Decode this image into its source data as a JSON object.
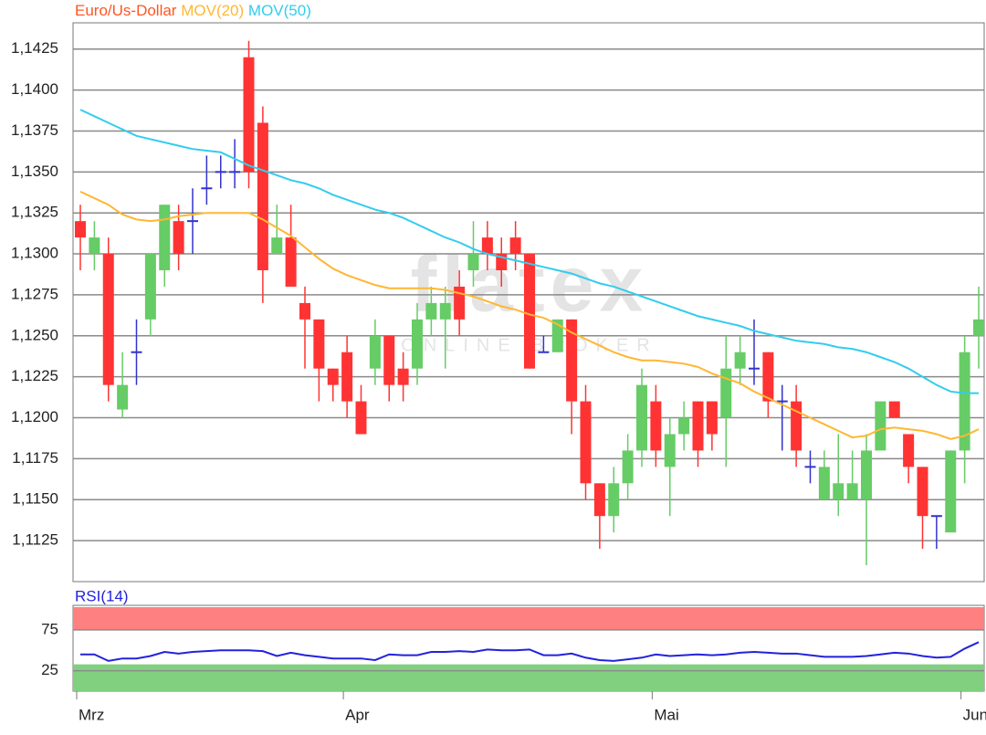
{
  "chart_data": [
    {
      "type": "candlestick",
      "watermark": "flatex",
      "watermark_subtitle": "ONLINE BROKER",
      "categories": [
        "Mrz",
        null,
        null,
        null,
        null,
        null,
        null,
        null,
        null,
        null,
        null,
        null,
        null,
        null,
        null,
        null,
        null,
        null,
        null,
        "Apr",
        null,
        null,
        null,
        null,
        null,
        null,
        null,
        null,
        null,
        null,
        null,
        null,
        null,
        null,
        null,
        null,
        null,
        null,
        null,
        null,
        null,
        "Mai",
        null,
        null,
        null,
        null,
        null,
        null,
        null,
        null,
        null,
        null,
        null,
        null,
        null,
        null,
        null,
        null,
        null,
        null,
        null,
        null,
        null,
        "Jun",
        null
      ],
      "up_color": "#66cc66",
      "down_color": "#ff3333",
      "doji_color": "#3333cc",
      "series": [
        {
          "name": "Euro/Us-Dollar",
          "color": "#ff5522",
          "open": [
            1.132,
            1.13,
            1.13,
            1.1205,
            1.124,
            1.126,
            1.129,
            1.132,
            1.132,
            1.134,
            1.135,
            1.135,
            1.142,
            1.138,
            1.13,
            1.131,
            1.127,
            1.126,
            1.123,
            1.124,
            1.121,
            1.123,
            1.125,
            1.123,
            1.123,
            1.126,
            1.126,
            1.128,
            1.129,
            1.131,
            1.13,
            1.131,
            1.13,
            1.124,
            1.124,
            1.126,
            1.121,
            1.116,
            1.114,
            1.116,
            1.118,
            1.121,
            1.117,
            1.119,
            1.121,
            1.121,
            1.12,
            1.123,
            1.123,
            1.124,
            1.121,
            1.121,
            1.117,
            1.115,
            1.115,
            1.115,
            1.115,
            1.118,
            1.121,
            1.119,
            1.117,
            1.114,
            1.113,
            1.118,
            1.125
          ],
          "high": [
            1.133,
            1.132,
            1.131,
            1.124,
            1.126,
            1.13,
            1.133,
            1.133,
            1.134,
            1.136,
            1.136,
            1.137,
            1.143,
            1.139,
            1.133,
            1.133,
            1.128,
            1.126,
            1.123,
            1.125,
            1.122,
            1.126,
            1.125,
            1.124,
            1.127,
            1.128,
            1.128,
            1.129,
            1.132,
            1.132,
            1.131,
            1.132,
            1.13,
            1.125,
            1.126,
            1.126,
            1.122,
            1.116,
            1.117,
            1.119,
            1.123,
            1.122,
            1.12,
            1.121,
            1.121,
            1.121,
            1.125,
            1.125,
            1.126,
            1.124,
            1.122,
            1.122,
            1.118,
            1.118,
            1.119,
            1.118,
            1.119,
            1.121,
            1.121,
            1.119,
            1.117,
            1.114,
            1.118,
            1.125,
            1.128
          ],
          "low": [
            1.129,
            1.129,
            1.121,
            1.12,
            1.122,
            1.125,
            1.128,
            1.129,
            1.13,
            1.133,
            1.134,
            1.134,
            1.134,
            1.127,
            1.13,
            1.128,
            1.123,
            1.121,
            1.121,
            1.12,
            1.119,
            1.122,
            1.121,
            1.121,
            1.122,
            1.125,
            1.123,
            1.125,
            1.128,
            1.129,
            1.128,
            1.129,
            1.123,
            1.124,
            1.124,
            1.119,
            1.115,
            1.112,
            1.113,
            1.115,
            1.117,
            1.117,
            1.114,
            1.118,
            1.117,
            1.118,
            1.117,
            1.122,
            1.122,
            1.12,
            1.118,
            1.117,
            1.116,
            1.115,
            1.114,
            1.115,
            1.111,
            1.118,
            1.12,
            1.116,
            1.112,
            1.112,
            1.113,
            1.116,
            1.123
          ],
          "close": [
            1.131,
            1.131,
            1.122,
            1.122,
            1.124,
            1.13,
            1.133,
            1.13,
            1.132,
            1.134,
            1.135,
            1.135,
            1.135,
            1.129,
            1.131,
            1.128,
            1.126,
            1.123,
            1.122,
            1.121,
            1.119,
            1.125,
            1.122,
            1.122,
            1.126,
            1.127,
            1.127,
            1.126,
            1.13,
            1.13,
            1.129,
            1.13,
            1.123,
            1.124,
            1.126,
            1.121,
            1.116,
            1.114,
            1.116,
            1.118,
            1.122,
            1.118,
            1.119,
            1.12,
            1.118,
            1.119,
            1.123,
            1.124,
            1.123,
            1.121,
            1.121,
            1.118,
            1.117,
            1.117,
            1.116,
            1.116,
            1.118,
            1.121,
            1.12,
            1.117,
            1.114,
            1.114,
            1.118,
            1.124,
            1.126
          ]
        },
        {
          "name": "MOV(20)",
          "color": "#ffb732",
          "values": [
            1.1338,
            1.1334,
            1.133,
            1.1324,
            1.1321,
            1.132,
            1.1321,
            1.1323,
            1.1324,
            1.1325,
            1.1325,
            1.1325,
            1.1325,
            1.1321,
            1.1316,
            1.1311,
            1.1304,
            1.1297,
            1.1291,
            1.1287,
            1.1284,
            1.1281,
            1.1279,
            1.1279,
            1.1279,
            1.1279,
            1.1278,
            1.1276,
            1.1274,
            1.1271,
            1.1268,
            1.1266,
            1.1263,
            1.1261,
            1.1257,
            1.1252,
            1.1248,
            1.1244,
            1.124,
            1.1237,
            1.1235,
            1.1235,
            1.1234,
            1.1233,
            1.1231,
            1.1227,
            1.1224,
            1.1221,
            1.1216,
            1.1212,
            1.1208,
            1.1204,
            1.12,
            1.1196,
            1.1192,
            1.1188,
            1.1189,
            1.1193,
            1.1194,
            1.1193,
            1.1192,
            1.119,
            1.1187,
            1.1189,
            1.1193
          ]
        },
        {
          "name": "MOV(50)",
          "color": "#33ccee",
          "values": [
            1.1388,
            1.1384,
            1.138,
            1.1376,
            1.1372,
            1.137,
            1.1368,
            1.1366,
            1.1364,
            1.1363,
            1.1362,
            1.1358,
            1.1354,
            1.1351,
            1.1348,
            1.1345,
            1.1343,
            1.134,
            1.1336,
            1.1333,
            1.133,
            1.1327,
            1.1325,
            1.1322,
            1.1318,
            1.1314,
            1.131,
            1.1307,
            1.1303,
            1.13,
            1.1298,
            1.1296,
            1.1294,
            1.1292,
            1.129,
            1.1288,
            1.1285,
            1.1282,
            1.128,
            1.1277,
            1.1274,
            1.1271,
            1.1268,
            1.1265,
            1.1262,
            1.126,
            1.1258,
            1.1256,
            1.1253,
            1.1251,
            1.1249,
            1.1247,
            1.1246,
            1.1245,
            1.1243,
            1.1242,
            1.124,
            1.1237,
            1.1234,
            1.123,
            1.1225,
            1.122,
            1.1216,
            1.1215,
            1.1215
          ]
        }
      ],
      "ylim": [
        1.11,
        1.1441
      ],
      "yticks": [
        {
          "value": 1.1125,
          "label": "1,1125"
        },
        {
          "value": 1.115,
          "label": "1,1150"
        },
        {
          "value": 1.1175,
          "label": "1,1175"
        },
        {
          "value": 1.12,
          "label": "1,1200"
        },
        {
          "value": 1.1225,
          "label": "1,1225"
        },
        {
          "value": 1.125,
          "label": "1,1250"
        },
        {
          "value": 1.1275,
          "label": "1,1275"
        },
        {
          "value": 1.13,
          "label": "1,1300"
        },
        {
          "value": 1.1325,
          "label": "1,1325"
        },
        {
          "value": 1.135,
          "label": "1,1350"
        },
        {
          "value": 1.1375,
          "label": "1,1375"
        },
        {
          "value": 1.14,
          "label": "1,1400"
        },
        {
          "value": 1.1425,
          "label": "1,1425"
        }
      ],
      "grid": true
    },
    {
      "type": "line",
      "series": [
        {
          "name": "RSI(14)",
          "color": "#2222dd",
          "values": [
            45,
            45,
            37,
            40,
            40,
            43,
            48,
            46,
            48,
            49,
            50,
            50,
            50,
            49,
            43,
            47,
            44,
            42,
            40,
            40,
            40,
            38,
            45,
            44,
            44,
            48,
            48,
            49,
            48,
            51,
            50,
            50,
            51,
            44,
            44,
            46,
            41,
            38,
            37,
            39,
            41,
            45,
            43,
            44,
            45,
            44,
            45,
            47,
            48,
            47,
            46,
            46,
            44,
            42,
            42,
            42,
            43,
            45,
            47,
            46,
            43,
            41,
            42,
            52,
            60
          ]
        }
      ],
      "ylim": [
        0,
        105
      ],
      "yticks": [
        25,
        75
      ],
      "upper_zone_color": "#ff8080",
      "lower_zone_color": "#80d080",
      "grid": true
    }
  ]
}
